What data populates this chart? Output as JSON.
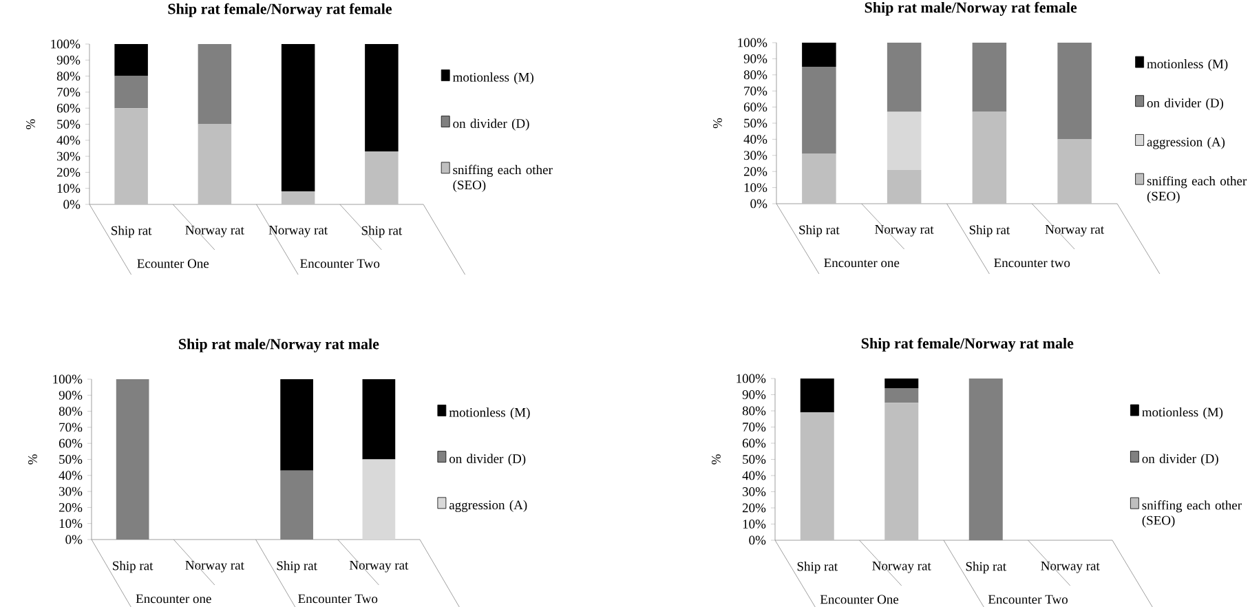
{
  "chart_data": [
    {
      "type": "bar",
      "stacked": true,
      "title": "Ship rat female/Norway rat female",
      "ylabel": "%",
      "categories": [
        "Ship rat",
        "Norway rat",
        "Norway rat",
        "Ship rat"
      ],
      "annotations": [
        "Ecounter One",
        "Encounter Two"
      ],
      "ylim": [
        0,
        100
      ],
      "yticks": [
        {
          "value": 0,
          "label": "0%"
        },
        {
          "value": 10,
          "label": "10%"
        },
        {
          "value": 20,
          "label": "20%"
        },
        {
          "value": 30,
          "label": "30%"
        },
        {
          "value": 40,
          "label": "40%"
        },
        {
          "value": 50,
          "label": "50%"
        },
        {
          "value": 60,
          "label": "60%"
        },
        {
          "value": 70,
          "label": "70%"
        },
        {
          "value": 80,
          "label": "80%"
        },
        {
          "value": 90,
          "label": "90%"
        },
        {
          "value": 100,
          "label": "100%"
        }
      ],
      "legend": "right",
      "series": [
        {
          "name": "sniffing each other (SEO)",
          "color": "#bfbfbf",
          "values": [
            60,
            50,
            8,
            33
          ]
        },
        {
          "name": "on divider (D)",
          "color": "#808080",
          "values": [
            20,
            50,
            0,
            0
          ]
        },
        {
          "name": "motionless (M)",
          "color": "#000000",
          "values": [
            20,
            0,
            92,
            67
          ]
        }
      ]
    },
    {
      "type": "bar",
      "stacked": true,
      "title": "Ship rat male/Norway rat female",
      "ylabel": "%",
      "categories": [
        "Ship rat",
        "Norway rat",
        "Ship rat",
        "Norway rat"
      ],
      "annotations": [
        "Encounter one",
        "Encounter two"
      ],
      "ylim": [
        0,
        100
      ],
      "yticks": [
        {
          "value": 0,
          "label": "0%"
        },
        {
          "value": 10,
          "label": "10%"
        },
        {
          "value": 20,
          "label": "20%"
        },
        {
          "value": 30,
          "label": "30%"
        },
        {
          "value": 40,
          "label": "40%"
        },
        {
          "value": 50,
          "label": "50%"
        },
        {
          "value": 60,
          "label": "60%"
        },
        {
          "value": 70,
          "label": "70%"
        },
        {
          "value": 80,
          "label": "80%"
        },
        {
          "value": 90,
          "label": "90%"
        },
        {
          "value": 100,
          "label": "100%"
        }
      ],
      "legend": "right",
      "series": [
        {
          "name": "sniffing each other (SEO)",
          "color": "#bfbfbf",
          "values": [
            31,
            21,
            57,
            40
          ]
        },
        {
          "name": "aggression (A)",
          "color": "#d9d9d9",
          "values": [
            0,
            36,
            0,
            0
          ]
        },
        {
          "name": "on divider (D)",
          "color": "#808080",
          "values": [
            54,
            43,
            43,
            60
          ]
        },
        {
          "name": "motionless (M)",
          "color": "#000000",
          "values": [
            15,
            0,
            0,
            0
          ]
        }
      ]
    },
    {
      "type": "bar",
      "stacked": true,
      "title": "Ship rat male/Norway rat male",
      "ylabel": "%",
      "categories": [
        "Ship rat",
        "Norway rat",
        "Ship rat",
        "Norway rat"
      ],
      "annotations": [
        "Encounter one",
        "Encounter Two"
      ],
      "ylim": [
        0,
        100
      ],
      "yticks": [
        {
          "value": 0,
          "label": "0%"
        },
        {
          "value": 10,
          "label": "10%"
        },
        {
          "value": 20,
          "label": "20%"
        },
        {
          "value": 30,
          "label": "30%"
        },
        {
          "value": 40,
          "label": "40%"
        },
        {
          "value": 50,
          "label": "50%"
        },
        {
          "value": 60,
          "label": "60%"
        },
        {
          "value": 70,
          "label": "70%"
        },
        {
          "value": 80,
          "label": "80%"
        },
        {
          "value": 90,
          "label": "90%"
        },
        {
          "value": 100,
          "label": "100%"
        }
      ],
      "legend": "right",
      "series": [
        {
          "name": "aggression (A)",
          "color": "#d9d9d9",
          "values": [
            0,
            0,
            0,
            50
          ]
        },
        {
          "name": "on divider (D)",
          "color": "#808080",
          "values": [
            100,
            0,
            43,
            0
          ]
        },
        {
          "name": "motionless (M)",
          "color": "#000000",
          "values": [
            0,
            0,
            57,
            50
          ]
        }
      ]
    },
    {
      "type": "bar",
      "stacked": true,
      "title": "Ship rat female/Norway rat male",
      "ylabel": "%",
      "categories": [
        "Ship rat",
        "Norway rat",
        "Ship rat",
        "Norway rat"
      ],
      "annotations": [
        "Encounter One",
        "Encounter Two"
      ],
      "ylim": [
        0,
        100
      ],
      "yticks": [
        {
          "value": 0,
          "label": "0%"
        },
        {
          "value": 10,
          "label": "10%"
        },
        {
          "value": 20,
          "label": "20%"
        },
        {
          "value": 30,
          "label": "30%"
        },
        {
          "value": 40,
          "label": "40%"
        },
        {
          "value": 50,
          "label": "50%"
        },
        {
          "value": 60,
          "label": "60%"
        },
        {
          "value": 70,
          "label": "70%"
        },
        {
          "value": 80,
          "label": "80%"
        },
        {
          "value": 90,
          "label": "90%"
        },
        {
          "value": 100,
          "label": "100%"
        }
      ],
      "legend": "right",
      "series": [
        {
          "name": "sniffing each other (SEO)",
          "color": "#bfbfbf",
          "values": [
            79,
            85,
            0,
            0
          ]
        },
        {
          "name": "on divider (D)",
          "color": "#808080",
          "values": [
            0,
            9,
            100,
            0
          ]
        },
        {
          "name": "motionless (M)",
          "color": "#000000",
          "values": [
            21,
            6,
            0,
            0
          ]
        }
      ]
    }
  ]
}
